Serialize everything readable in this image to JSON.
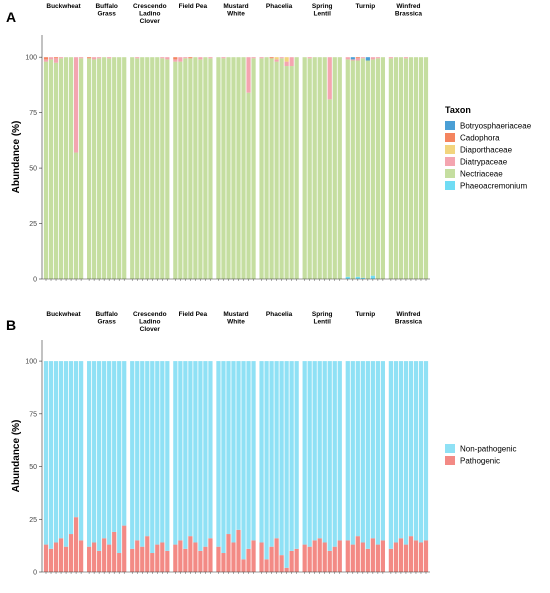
{
  "chart_data": [
    {
      "type": "bar",
      "stacked": true,
      "panel_label": "A",
      "ylabel": "Abundance (%)",
      "legend_title": "Taxon",
      "ylim": [
        0,
        110
      ],
      "yticks": [
        0,
        25,
        50,
        75,
        100
      ],
      "facets": [
        "Buckwheat",
        "Buffalo\nGrass",
        "Crescendo\nLadino\nClover",
        "Field Pea",
        "Mustard\nWhite",
        "Phacelia",
        "Spring\nLentil",
        "Turnip",
        "Winfred\nBrassica"
      ],
      "series": [
        {
          "name": "Botryosphaeriaceae",
          "color": "#4a9fd5",
          "values": [
            [
              0,
              0,
              0,
              0,
              0,
              0,
              0,
              0
            ],
            [
              0,
              0,
              0,
              0,
              0,
              0,
              0,
              0
            ],
            [
              0,
              0,
              0,
              0,
              0,
              0,
              0,
              0
            ],
            [
              0,
              0,
              0,
              0,
              0,
              0,
              0,
              0
            ],
            [
              0,
              0,
              0,
              0,
              0,
              0,
              0,
              0
            ],
            [
              0,
              0,
              0,
              0,
              0,
              0,
              0,
              0
            ],
            [
              0,
              0,
              0,
              0,
              0,
              0,
              0,
              0
            ],
            [
              0,
              1,
              0,
              0,
              1.5,
              0,
              0,
              0
            ],
            [
              0,
              0,
              0,
              0,
              0,
              0,
              0,
              0
            ]
          ]
        },
        {
          "name": "Cadophora",
          "color": "#f4845f",
          "values": [
            [
              1,
              0,
              0.5,
              0,
              0,
              0,
              0,
              0
            ],
            [
              0.5,
              0,
              0,
              0,
              0,
              0,
              0,
              0
            ],
            [
              0,
              0,
              0,
              0,
              0,
              0,
              0,
              0
            ],
            [
              1,
              0,
              0,
              0.5,
              0,
              0,
              0,
              0
            ],
            [
              0,
              0,
              0,
              0,
              0,
              0,
              0,
              0
            ],
            [
              0,
              0,
              0.5,
              0,
              0,
              0,
              0,
              0
            ],
            [
              0,
              0,
              0,
              0,
              0,
              0,
              0,
              0
            ],
            [
              0,
              0,
              0.5,
              0,
              0,
              0,
              0,
              0
            ],
            [
              0,
              0,
              0,
              0,
              0,
              0,
              0,
              0
            ]
          ]
        },
        {
          "name": "Diaporthaceae",
          "color": "#f2d57e",
          "values": [
            [
              0,
              0,
              0,
              0,
              0,
              0,
              0,
              0
            ],
            [
              0,
              0,
              0,
              0,
              0,
              0,
              0,
              0
            ],
            [
              0,
              0,
              0,
              0,
              0,
              0,
              0,
              0
            ],
            [
              0,
              0,
              0,
              0,
              0,
              0,
              0,
              0
            ],
            [
              0,
              0,
              0,
              0,
              0,
              0,
              0,
              0
            ],
            [
              0,
              0,
              0,
              1,
              0,
              2,
              0,
              0
            ],
            [
              0,
              0,
              0,
              0,
              0,
              0,
              0,
              0
            ],
            [
              0,
              0,
              0,
              0,
              0,
              0,
              0,
              0
            ],
            [
              0,
              0,
              0,
              0,
              0,
              0,
              0,
              0
            ]
          ]
        },
        {
          "name": "Diatrypaceae",
          "color": "#f4a5b0",
          "values": [
            [
              1,
              1,
              2,
              0.5,
              0,
              0,
              43,
              0.5
            ],
            [
              0,
              1,
              0.5,
              0,
              0.5,
              0,
              0,
              0
            ],
            [
              0,
              0.5,
              0,
              0,
              0,
              0,
              0.5,
              1
            ],
            [
              1,
              2,
              0.5,
              0,
              0,
              1,
              0,
              0.5
            ],
            [
              0,
              0.5,
              0,
              0,
              0,
              0,
              16,
              0.5
            ],
            [
              0.5,
              0,
              0,
              1,
              0.5,
              2,
              4,
              0
            ],
            [
              0,
              0.5,
              0,
              0,
              0,
              19,
              0,
              0
            ],
            [
              1,
              0.5,
              1,
              0.5,
              0,
              1,
              0.5,
              0
            ],
            [
              0.5,
              0,
              0,
              0.5,
              0,
              0,
              0,
              0
            ]
          ]
        },
        {
          "name": "Nectriaceae",
          "color": "#c5dea0",
          "values": [
            [
              98,
              99,
              97.5,
              99.5,
              100,
              100,
              57,
              99.5
            ],
            [
              99.5,
              99,
              99.5,
              100,
              99.5,
              100,
              100,
              100
            ],
            [
              100,
              99.5,
              100,
              100,
              100,
              100,
              99.5,
              99
            ],
            [
              98,
              98,
              99.5,
              99.5,
              100,
              99,
              100,
              99.5
            ],
            [
              100,
              99.5,
              100,
              100,
              100,
              100,
              84,
              99.5
            ],
            [
              99.5,
              100,
              99.5,
              98,
              99.5,
              96,
              96,
              100
            ],
            [
              100,
              99.5,
              100,
              100,
              100,
              81,
              100,
              100
            ],
            [
              98,
              98.5,
              97.5,
              99,
              98.5,
              97.5,
              99.5,
              100
            ],
            [
              99.5,
              100,
              100,
              99.5,
              100,
              100,
              100,
              100
            ]
          ]
        },
        {
          "name": "Phaeoacremonium",
          "color": "#70dcf4",
          "values": [
            [
              0,
              0,
              0,
              0,
              0,
              0,
              0,
              0
            ],
            [
              0,
              0,
              0,
              0,
              0,
              0,
              0,
              0
            ],
            [
              0,
              0,
              0,
              0,
              0,
              0,
              0,
              0
            ],
            [
              0,
              0,
              0,
              0,
              0,
              0,
              0,
              0
            ],
            [
              0,
              0,
              0,
              0,
              0,
              0,
              0,
              0
            ],
            [
              0,
              0,
              0,
              0,
              0,
              0,
              0,
              0
            ],
            [
              0,
              0,
              0,
              0,
              0,
              0,
              0,
              0
            ],
            [
              1,
              0,
              1,
              0.5,
              0,
              1.5,
              0,
              0
            ],
            [
              0,
              0,
              0,
              0,
              0,
              0,
              0,
              0
            ]
          ]
        }
      ]
    },
    {
      "type": "bar",
      "stacked": true,
      "panel_label": "B",
      "ylabel": "Abundance (%)",
      "ylim": [
        0,
        110
      ],
      "yticks": [
        0,
        25,
        50,
        75,
        100
      ],
      "facets": [
        "Buckwheat",
        "Buffalo\nGrass",
        "Crescendo\nLadino\nClover",
        "Field Pea",
        "Mustard\nWhite",
        "Phacelia",
        "Spring\nLentil",
        "Turnip",
        "Winfred\nBrassica"
      ],
      "series": [
        {
          "name": "Non-pathogenic",
          "color": "#8fe1f5",
          "values": [
            [
              87,
              89,
              86,
              84,
              88,
              82,
              74,
              85
            ],
            [
              88,
              86,
              90,
              84,
              87,
              81,
              91,
              78
            ],
            [
              89,
              85,
              88,
              83,
              91,
              87,
              86,
              90
            ],
            [
              87,
              85,
              89,
              83,
              86,
              90,
              88,
              84
            ],
            [
              88,
              91,
              82,
              86,
              80,
              94,
              89,
              85
            ],
            [
              86,
              94,
              88,
              84,
              92,
              98,
              90,
              89
            ],
            [
              87,
              88,
              85,
              84,
              86,
              90,
              88,
              85
            ],
            [
              85,
              87,
              83,
              86,
              89,
              84,
              87,
              85
            ],
            [
              89,
              86,
              84,
              87,
              83,
              85,
              86,
              85
            ]
          ]
        },
        {
          "name": "Pathogenic",
          "color": "#f38a85",
          "values": [
            [
              13,
              11,
              14,
              16,
              12,
              18,
              26,
              15
            ],
            [
              12,
              14,
              10,
              16,
              13,
              19,
              9,
              22
            ],
            [
              11,
              15,
              12,
              17,
              9,
              13,
              14,
              10
            ],
            [
              13,
              15,
              11,
              17,
              14,
              10,
              12,
              16
            ],
            [
              12,
              9,
              18,
              14,
              20,
              6,
              11,
              15
            ],
            [
              14,
              6,
              12,
              16,
              8,
              2,
              10,
              11
            ],
            [
              13,
              12,
              15,
              16,
              14,
              10,
              12,
              15
            ],
            [
              15,
              13,
              17,
              14,
              11,
              16,
              13,
              15
            ],
            [
              11,
              14,
              16,
              13,
              17,
              15,
              14,
              15
            ]
          ]
        }
      ]
    }
  ]
}
